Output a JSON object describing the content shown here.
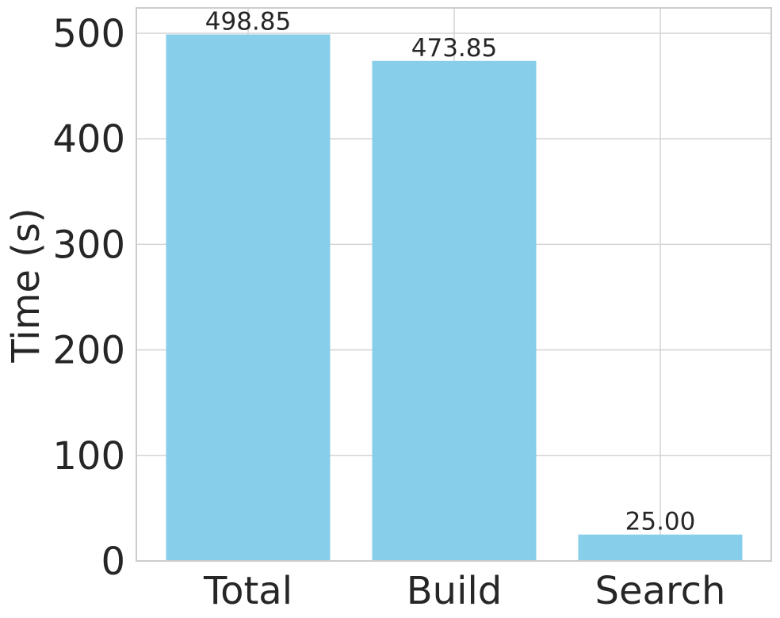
{
  "chart_data": {
    "type": "bar",
    "y_label": "Time (s)",
    "categories": [
      "Total",
      "Build",
      "Search"
    ],
    "values": [
      498.85,
      473.85,
      25.0
    ],
    "value_labels": [
      "498.85",
      "473.85",
      "25.00"
    ],
    "color": "#87ceeb",
    "ylim": [
      0,
      524
    ],
    "yticks": [
      0,
      100,
      200,
      300,
      400,
      500
    ],
    "grid": true
  }
}
